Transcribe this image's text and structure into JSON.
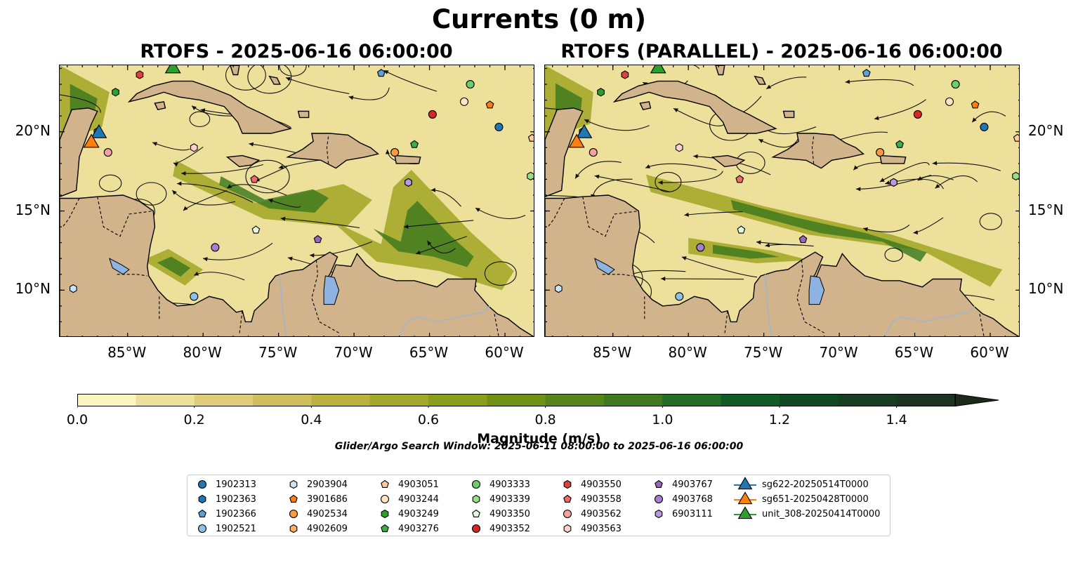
{
  "figure": {
    "title": "Currents (0 m)",
    "search_window": "Glider/Argo Search Window: 2025-06-11 08:00:00 to 2025-06-16 06:00:00"
  },
  "panels": [
    {
      "title": "RTOFS - 2025-06-16 06:00:00"
    },
    {
      "title": "RTOFS (PARALLEL) - 2025-06-16 06:00:00"
    }
  ],
  "map_extent": {
    "lon": [
      -89.5,
      -58.0
    ],
    "lat": [
      7.0,
      24.2
    ]
  },
  "lon_ticks": [
    "85°W",
    "80°W",
    "75°W",
    "70°W",
    "65°W",
    "60°W"
  ],
  "lat_ticks": [
    "20°N",
    "15°N",
    "10°N"
  ],
  "colors": {
    "land": "#d2b48c",
    "lake": "#8fb3e0",
    "river": "#9fb6cd",
    "ocean_low": "#fdf6c0",
    "ocean_high": "#1c2a1a"
  },
  "colorbar": {
    "label": "Magnitude (m/s)",
    "ticks": [
      "0.0",
      "0.2",
      "0.4",
      "0.6",
      "0.8",
      "1.0",
      "1.2",
      "1.4"
    ],
    "range": [
      0.0,
      1.5
    ],
    "extend": "max",
    "colors": [
      "#fcf5c0",
      "#ede09a",
      "#dfcd7a",
      "#cfbf5a",
      "#bcb13f",
      "#a4a82a",
      "#8a9e1b",
      "#6e9116",
      "#568519",
      "#3f7a1f",
      "#256c24",
      "#0f5c26",
      "#0f4a22",
      "#173d22",
      "#1d3320",
      "#1c2a1a"
    ]
  },
  "legend": [
    {
      "label": "1902313",
      "color": "#1f77b4",
      "shape": "circle"
    },
    {
      "label": "1902363",
      "color": "#1f77b4",
      "shape": "hexagon"
    },
    {
      "label": "1902366",
      "color": "#5aa2d8",
      "shape": "pentagon"
    },
    {
      "label": "1902521",
      "color": "#8fc0e8",
      "shape": "circle"
    },
    {
      "label": "2903904",
      "color": "#c6e3fa",
      "shape": "hexagon"
    },
    {
      "label": "3901686",
      "color": "#ff7f0e",
      "shape": "pentagon"
    },
    {
      "label": "4902534",
      "color": "#ff9a3c",
      "shape": "circle"
    },
    {
      "label": "4902609",
      "color": "#ffb060",
      "shape": "hexagon"
    },
    {
      "label": "4903051",
      "color": "#ffcc99",
      "shape": "pentagon"
    },
    {
      "label": "4903244",
      "color": "#ffe4c4",
      "shape": "circle"
    },
    {
      "label": "4903249",
      "color": "#2ca02c",
      "shape": "hexagon"
    },
    {
      "label": "4903276",
      "color": "#3cb043",
      "shape": "pentagon"
    },
    {
      "label": "4903333",
      "color": "#6ccf6c",
      "shape": "circle"
    },
    {
      "label": "4903339",
      "color": "#98df8a",
      "shape": "hexagon"
    },
    {
      "label": "4903350",
      "color": "#e4f8e0",
      "shape": "pentagon"
    },
    {
      "label": "4903352",
      "color": "#d62728",
      "shape": "circle"
    },
    {
      "label": "4903550",
      "color": "#e04040",
      "shape": "hexagon"
    },
    {
      "label": "4903558",
      "color": "#ef6a6a",
      "shape": "pentagon"
    },
    {
      "label": "4903562",
      "color": "#f7a0a0",
      "shape": "circle"
    },
    {
      "label": "4903563",
      "color": "#fdd0d0",
      "shape": "hexagon"
    },
    {
      "label": "4903767",
      "color": "#9467bd",
      "shape": "pentagon"
    },
    {
      "label": "4903768",
      "color": "#a57fd0",
      "shape": "circle"
    },
    {
      "label": "6903111",
      "color": "#b899e0",
      "shape": "hexagon"
    },
    {
      "label": "sg622-20250514T0000",
      "color": "#1f77b4",
      "shape": "triangle"
    },
    {
      "label": "sg651-20250428T0000",
      "color": "#ff7f0e",
      "shape": "triangle"
    },
    {
      "label": "unit_308-20250414T0000",
      "color": "#2ca02c",
      "shape": "triangle"
    }
  ],
  "platforms": [
    {
      "id": "1902313",
      "lon": -60.4,
      "lat": 20.3
    },
    {
      "id": "1902363",
      "lon": -87.0,
      "lat": 20.0
    },
    {
      "id": "1902366",
      "lon": -68.2,
      "lat": 23.7
    },
    {
      "id": "1902521",
      "lon": -80.6,
      "lat": 9.6
    },
    {
      "id": "2903904",
      "lon": -88.6,
      "lat": 10.1
    },
    {
      "id": "3901686",
      "lon": -61.0,
      "lat": 21.7
    },
    {
      "id": "4902534",
      "lon": -67.3,
      "lat": 18.7
    },
    {
      "id": "4902609",
      "lon": -66.4,
      "lat": 16.8
    },
    {
      "id": "4903051",
      "lon": -58.2,
      "lat": 19.6
    },
    {
      "id": "4903244",
      "lon": -62.7,
      "lat": 21.9
    },
    {
      "id": "4903249",
      "lon": -85.8,
      "lat": 22.5
    },
    {
      "id": "4903276",
      "lon": -66.0,
      "lat": 19.2
    },
    {
      "id": "4903333",
      "lon": -62.3,
      "lat": 23.0
    },
    {
      "id": "4903339",
      "lon": -58.3,
      "lat": 17.2
    },
    {
      "id": "4903350",
      "lon": -76.5,
      "lat": 13.8
    },
    {
      "id": "4903352",
      "lon": -64.8,
      "lat": 21.1
    },
    {
      "id": "4903550",
      "lon": -84.2,
      "lat": 23.6
    },
    {
      "id": "4903558",
      "lon": -76.6,
      "lat": 17.0
    },
    {
      "id": "4903562",
      "lon": -86.3,
      "lat": 18.7
    },
    {
      "id": "4903563",
      "lon": -80.6,
      "lat": 19.0
    },
    {
      "id": "4903767",
      "lon": -72.4,
      "lat": 13.2
    },
    {
      "id": "4903768",
      "lon": -79.2,
      "lat": 12.7
    },
    {
      "id": "6903111",
      "lon": -66.4,
      "lat": 16.8
    },
    {
      "id": "sg622-20250514T0000",
      "lon": -86.9,
      "lat": 20.0
    },
    {
      "id": "sg651-20250428T0000",
      "lon": -87.4,
      "lat": 19.4
    },
    {
      "id": "unit_308-20250414T0000",
      "lon": -82.0,
      "lat": 24.1
    }
  ]
}
